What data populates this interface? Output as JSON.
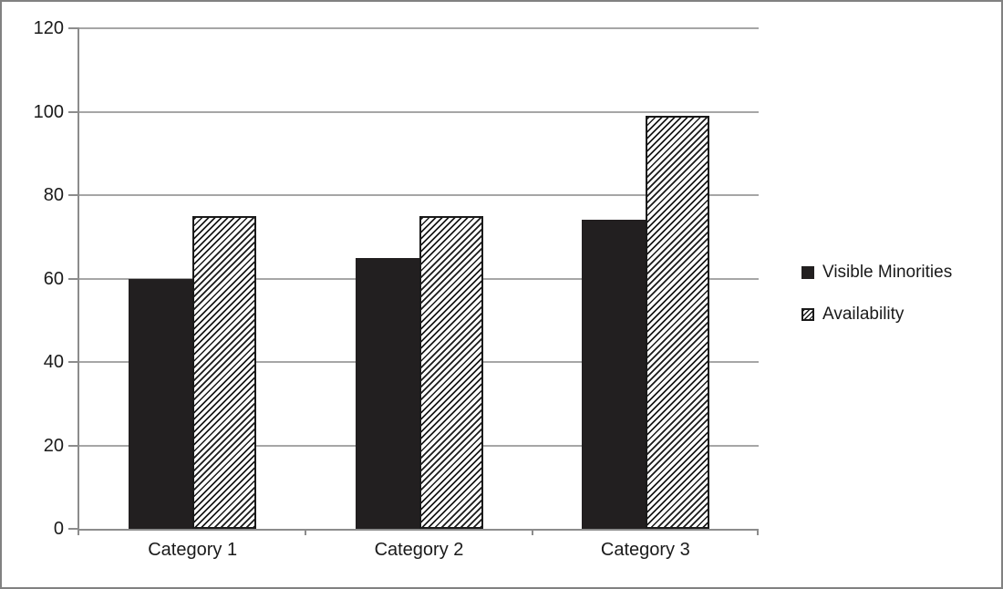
{
  "chart_data": {
    "type": "bar",
    "title": "",
    "categories": [
      "Category 1",
      "Category 2",
      "Category 3"
    ],
    "series": [
      {
        "name": "Visible Minorities",
        "fill": "solid",
        "values": [
          60,
          65,
          74
        ]
      },
      {
        "name": "Availability",
        "fill": "hatch",
        "values": [
          75,
          75,
          99
        ]
      }
    ],
    "ylim": [
      0,
      120
    ],
    "yticks": [
      0,
      20,
      40,
      60,
      80,
      100,
      120
    ],
    "xlabel": "",
    "ylabel": "",
    "grid": true,
    "legend_position": "right",
    "colors": {
      "bar_solid": "#221f20",
      "hatch_stripe": "#1a1a1a",
      "hatch_bg": "#ffffff",
      "gridline": "#a6a6a6",
      "axis": "#8c8c8c",
      "text": "#1a1a1a",
      "frame_border": "#818181"
    }
  }
}
